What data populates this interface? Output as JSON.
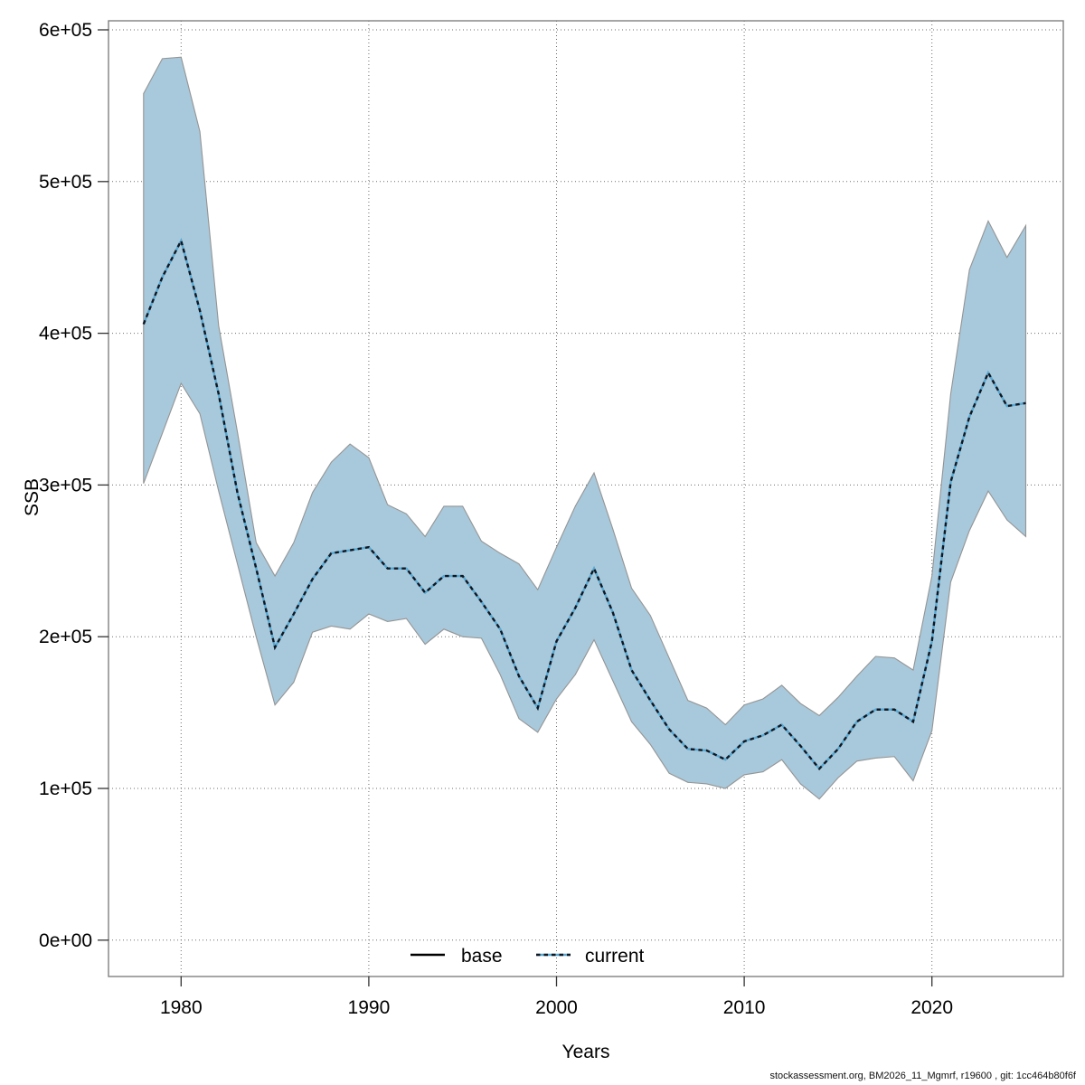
{
  "figure": {
    "xlabel": "Years",
    "ylabel": "SSB",
    "footer": "stockassessment.org, BM2026_11_Mgmrf, r19600 , git: 1cc464b80f6f"
  },
  "legend": {
    "position": "bottom-center-inside",
    "items": [
      {
        "label": "base",
        "type": "solid"
      },
      {
        "label": "current",
        "type": "dashed"
      }
    ]
  },
  "colors": {
    "band": "#a8c9db",
    "band_edge": "#949494",
    "current_underlay": "#58a8d2",
    "current_dash": "#101722",
    "base": "#000000",
    "grid": "#6e6e6e",
    "box": "#808080",
    "tick": "#333333",
    "text": "#000000"
  },
  "axes": {
    "x": {
      "ticks": [
        {
          "v": 1980,
          "label": "1980"
        },
        {
          "v": 1990,
          "label": "1990"
        },
        {
          "v": 2000,
          "label": "2000"
        },
        {
          "v": 2010,
          "label": "2010"
        },
        {
          "v": 2020,
          "label": "2020"
        }
      ]
    },
    "y": {
      "ticks": [
        {
          "v": 0,
          "label": "0e+00"
        },
        {
          "v": 100000,
          "label": "1e+05"
        },
        {
          "v": 200000,
          "label": "2e+05"
        },
        {
          "v": 300000,
          "label": "3e+05"
        },
        {
          "v": 400000,
          "label": "4e+05"
        },
        {
          "v": 500000,
          "label": "5e+05"
        },
        {
          "v": 600000,
          "label": "6e+05"
        }
      ]
    }
  },
  "chart_data": {
    "type": "line",
    "title": "",
    "xlabel": "Years",
    "ylabel": "SSB",
    "x_range": [
      1976.1,
      2027.0
    ],
    "y_range": [
      -24000,
      606000
    ],
    "grid": "dotted",
    "legend_position": "bottom-center",
    "years": [
      1978,
      1979,
      1980,
      1981,
      1982,
      1983,
      1984,
      1985,
      1986,
      1987,
      1988,
      1989,
      1990,
      1991,
      1992,
      1993,
      1994,
      1995,
      1996,
      1997,
      1998,
      1999,
      2000,
      2001,
      2002,
      2003,
      2004,
      2005,
      2006,
      2007,
      2008,
      2009,
      2010,
      2011,
      2012,
      2013,
      2014,
      2015,
      2016,
      2017,
      2018,
      2019,
      2020,
      2021,
      2022,
      2023,
      2024,
      2025
    ],
    "series": [
      {
        "name": "base",
        "style": "solid-black",
        "values_hidden_behind_current": true
      },
      {
        "name": "current",
        "style": "dotted-blue",
        "values": [
          406000,
          437000,
          461000,
          415000,
          360000,
          295000,
          245000,
          193000,
          215000,
          238000,
          255000,
          257000,
          259000,
          245000,
          245000,
          229000,
          240000,
          240000,
          223000,
          205000,
          174000,
          153000,
          197000,
          219000,
          245000,
          216000,
          178000,
          158000,
          139000,
          126000,
          125000,
          119000,
          131000,
          135000,
          142000,
          128000,
          113000,
          126000,
          144000,
          152000,
          152000,
          144000,
          197000,
          302000,
          345000,
          374000,
          352000,
          354000
        ],
        "ci_upper": [
          558000,
          581000,
          582000,
          533000,
          405000,
          335000,
          262000,
          240000,
          262000,
          295000,
          315000,
          327000,
          318000,
          287000,
          281000,
          266000,
          286000,
          286000,
          263000,
          255000,
          248000,
          231000,
          259000,
          286000,
          308000,
          271000,
          232000,
          214000,
          186000,
          158000,
          153000,
          142000,
          155000,
          159000,
          168000,
          156000,
          148000,
          160000,
          174000,
          187000,
          186000,
          178000,
          240000,
          360000,
          442000,
          474000,
          450000,
          471000
        ],
        "ci_lower": [
          301000,
          334000,
          367000,
          347000,
          296000,
          248000,
          200000,
          155000,
          170000,
          203000,
          207000,
          205000,
          215000,
          210000,
          212000,
          195000,
          205000,
          200000,
          199000,
          175000,
          146000,
          137000,
          159000,
          175000,
          198000,
          171000,
          144000,
          129000,
          110000,
          104000,
          103000,
          100000,
          109000,
          111000,
          119000,
          103000,
          93000,
          107000,
          118000,
          120000,
          121000,
          105000,
          138000,
          236000,
          270000,
          296000,
          277000,
          266000
        ]
      }
    ]
  }
}
